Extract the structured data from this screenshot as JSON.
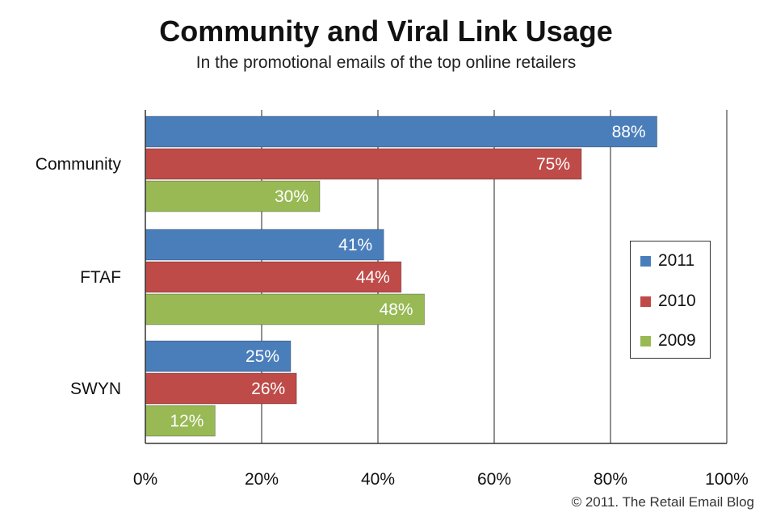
{
  "chart_data": {
    "type": "bar",
    "orientation": "horizontal",
    "title": "Community and Viral Link Usage",
    "subtitle": "In the promotional emails of the top online retailers",
    "categories": [
      "Community",
      "FTAF",
      "SWYN"
    ],
    "series": [
      {
        "name": "2011",
        "values": [
          88,
          41,
          25
        ],
        "labels": [
          "88%",
          "41%",
          "25%"
        ],
        "color": "#4a7ebb"
      },
      {
        "name": "2010",
        "values": [
          75,
          44,
          26
        ],
        "labels": [
          "75%",
          "44%",
          "26%"
        ],
        "color": "#be4b48"
      },
      {
        "name": "2009",
        "values": [
          30,
          48,
          12
        ],
        "labels": [
          "30%",
          "48%",
          "12%"
        ],
        "color": "#98b954"
      }
    ],
    "xlim": [
      0,
      100
    ],
    "xticks": [
      0,
      20,
      40,
      60,
      80,
      100
    ],
    "xtick_labels": [
      "0%",
      "20%",
      "40%",
      "60%",
      "80%",
      "100%"
    ],
    "grid": "vertical",
    "legend_position": "right",
    "copyright": "© 2011. The Retail Email Blog"
  }
}
